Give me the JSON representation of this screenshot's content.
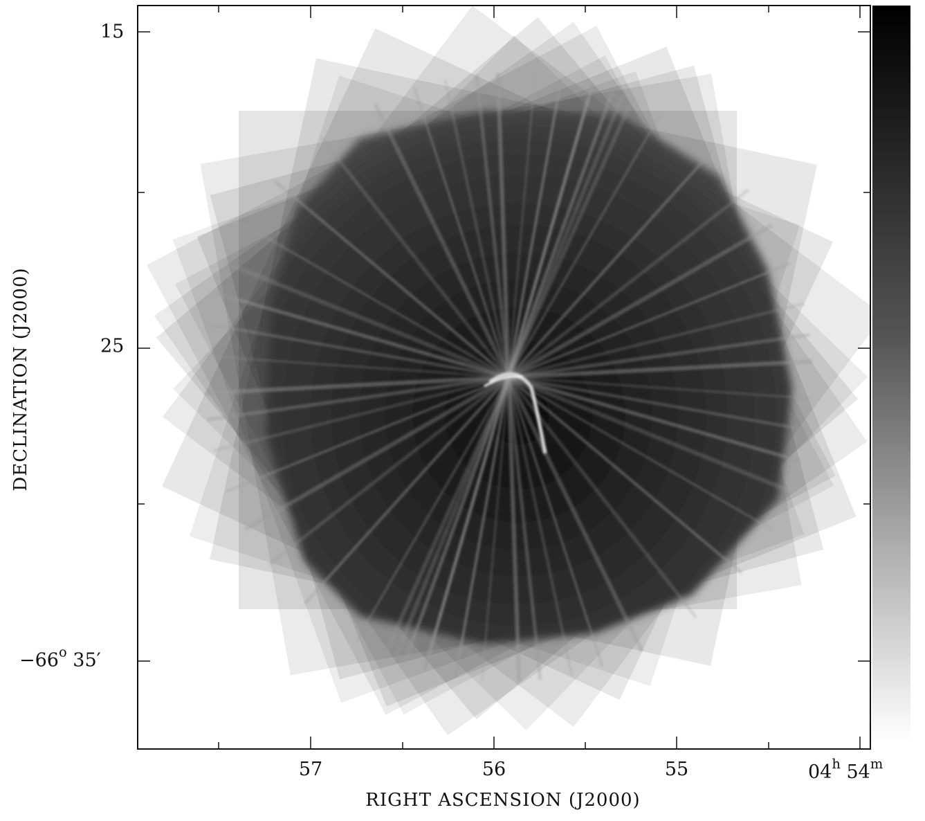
{
  "figure": {
    "xlabel": "RIGHT ASCENSION (J2000)",
    "ylabel": "DECLINATION (J2000)",
    "x_ticks": [
      {
        "text": "57"
      },
      {
        "text": "56"
      },
      {
        "text": "55"
      },
      {
        "h": "04",
        "h_unit": "h",
        "m": "54",
        "m_unit": "m"
      }
    ],
    "y_ticks": [
      {
        "text": "15"
      },
      {
        "text": "25"
      },
      {
        "deg": "−66",
        "deg_unit": "o",
        "arcmin": "35′"
      }
    ],
    "colorbar": {
      "scale": "grayscale",
      "top_color": "#000000",
      "bottom_color": "#ffffff"
    }
  }
}
